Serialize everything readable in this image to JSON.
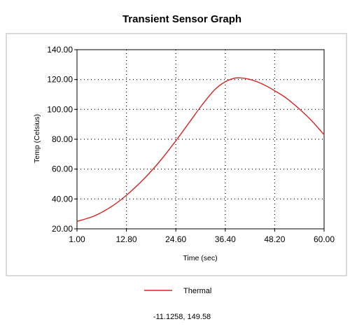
{
  "chart_data": {
    "type": "line",
    "title": "Transient Sensor Graph",
    "xlabel": "Time (sec)",
    "ylabel": "Temp (Celsius)",
    "xlim": [
      1.0,
      60.0
    ],
    "ylim": [
      20.0,
      140.0
    ],
    "x_ticks": [
      "1.00",
      "12.80",
      "24.60",
      "36.40",
      "48.20",
      "60.00"
    ],
    "y_ticks": [
      "20.00",
      "40.00",
      "60.00",
      "80.00",
      "100.00",
      "120.00",
      "140.00"
    ],
    "grid": true,
    "legend_position": "bottom",
    "series": [
      {
        "name": "Thermal",
        "color": "#d92323",
        "points": [
          [
            1.0,
            25.0
          ],
          [
            5.0,
            28.5
          ],
          [
            9.0,
            34.5
          ],
          [
            12.8,
            42.5
          ],
          [
            17.0,
            53.5
          ],
          [
            21.0,
            66.0
          ],
          [
            24.6,
            79.0
          ],
          [
            28.0,
            92.0
          ],
          [
            31.0,
            103.5
          ],
          [
            34.0,
            113.5
          ],
          [
            36.4,
            118.5
          ],
          [
            38.5,
            120.8
          ],
          [
            40.0,
            121.1
          ],
          [
            42.0,
            120.3
          ],
          [
            44.0,
            118.5
          ],
          [
            46.0,
            116.0
          ],
          [
            48.2,
            112.5
          ],
          [
            51.0,
            107.5
          ],
          [
            54.0,
            100.5
          ],
          [
            57.0,
            92.5
          ],
          [
            60.0,
            83.0
          ]
        ]
      }
    ]
  },
  "readout": {
    "text": "-11.1258, 149.58"
  }
}
